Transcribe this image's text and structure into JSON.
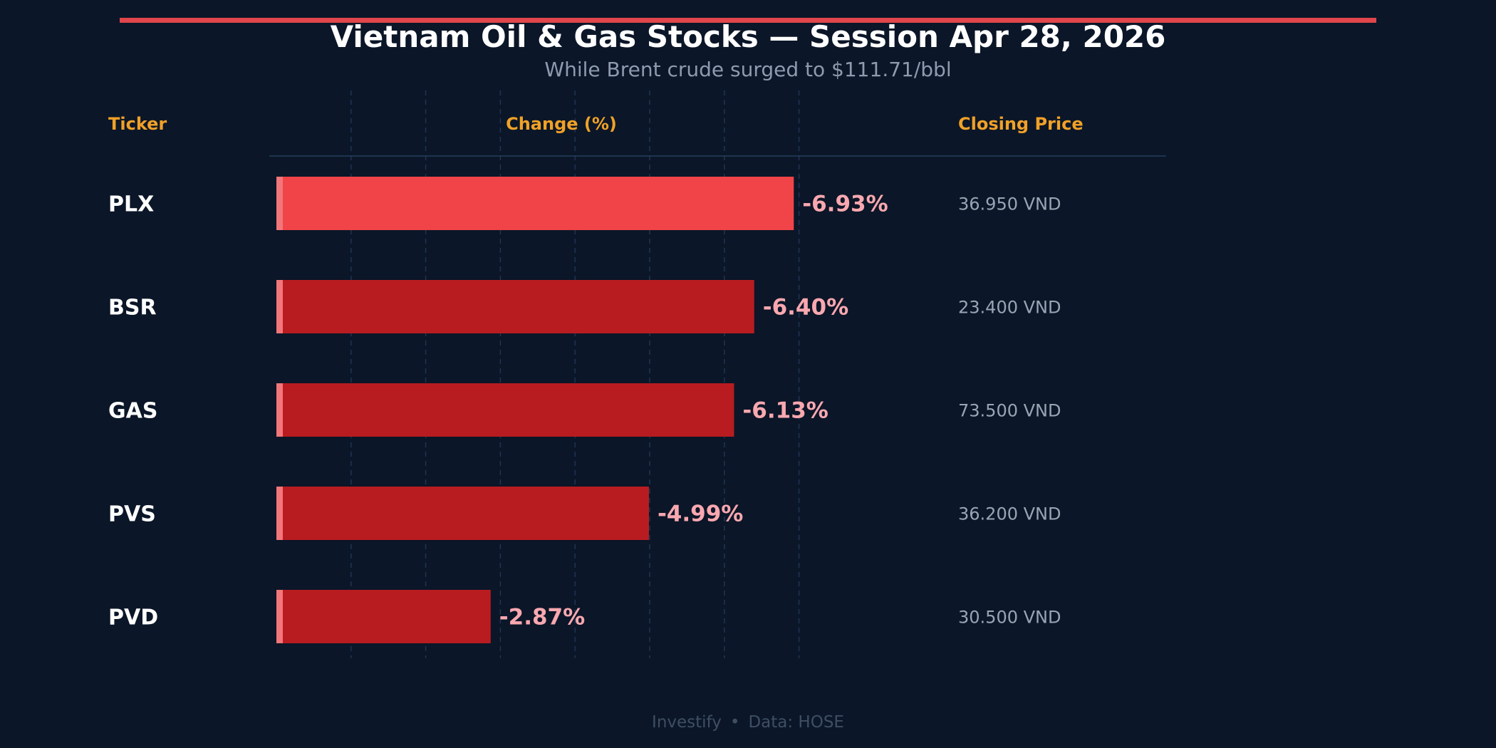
{
  "colors": {
    "background": "#0b1628",
    "accent_bar": "#e0464b",
    "title": "#ffffff",
    "subtitle": "#8e9bae",
    "header": "#f0a127",
    "ticker": "#ffffff",
    "bar_highlight": "#f04448",
    "bar_normal": "#b81c20",
    "bar_edge": "#f2767a",
    "value_label": "#f9a8b0",
    "price": "#9aa5b4",
    "grid": "#1e3552",
    "divider": "#253e5c",
    "footer": "#3e4e63"
  },
  "header": {
    "ticker": "Ticker",
    "change": "Change (%)",
    "price": "Closing Price"
  },
  "footer": {
    "brand": "Investify",
    "separator": "•",
    "source": "Data: HOSE"
  },
  "chart_data": {
    "type": "bar",
    "orientation": "horizontal",
    "title": "Vietnam Oil & Gas Stocks — Session Apr 28, 2026",
    "subtitle": "While Brent crude surged to $111.71/bbl",
    "xlabel": "Change (%)",
    "ylabel": "",
    "categories": [
      "PLX",
      "BSR",
      "GAS",
      "PVS",
      "PVD"
    ],
    "values": [
      -6.93,
      -6.4,
      -6.13,
      -4.99,
      -2.87
    ],
    "value_labels": [
      "-6.93%",
      "-6.40%",
      "-6.13%",
      "-4.99%",
      "-2.87%"
    ],
    "prices": [
      "36.950 VND",
      "23.400 VND",
      "73.500 VND",
      "36.200 VND",
      "30.500 VND"
    ],
    "highlight_index": 0,
    "xlim": [
      0,
      -7.5
    ],
    "grid": true,
    "legend": "none"
  }
}
